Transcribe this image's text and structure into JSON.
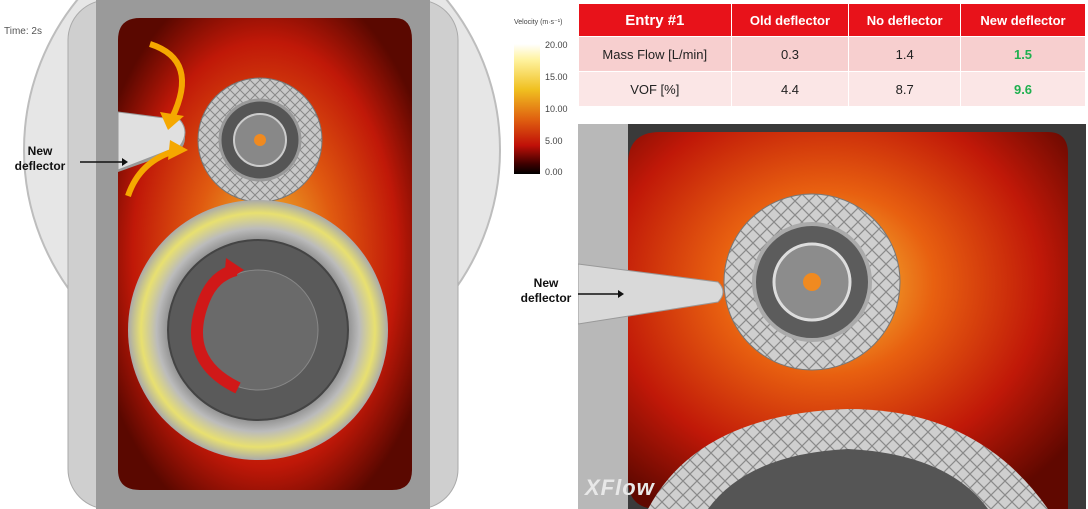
{
  "left_view": {
    "time_label": "Time: 2s",
    "callout": {
      "line1": "New",
      "line2": "deflector"
    }
  },
  "legend": {
    "title": "Velocity (m·s⁻¹)",
    "ticks": [
      "20.00",
      "15.00",
      "10.00",
      "5.00",
      "0.00"
    ]
  },
  "table": {
    "headers": [
      "Entry #1",
      "Old deflector",
      "No deflector",
      "New deflector"
    ],
    "rows": [
      {
        "label": "Mass Flow [L/min]",
        "old": "0.3",
        "none": "1.4",
        "new": "1.5"
      },
      {
        "label": "VOF [%]",
        "old": "4.4",
        "none": "8.7",
        "new": "9.6"
      }
    ],
    "highlight_color": "#20b050",
    "header_color": "#e8121a"
  },
  "right_view": {
    "callout": {
      "line1": "New",
      "line2": "deflector"
    },
    "watermark": "XFlow"
  }
}
